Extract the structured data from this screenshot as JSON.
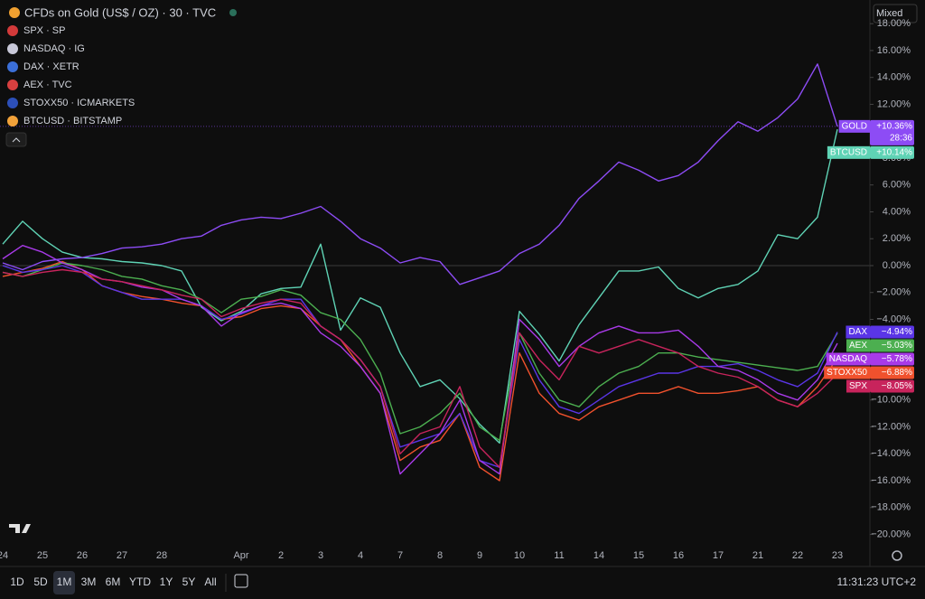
{
  "scale_mode": "Mixed",
  "toolbar": {
    "ranges": [
      "1D",
      "5D",
      "1M",
      "3M",
      "6M",
      "YTD",
      "1Y",
      "5Y",
      "All"
    ],
    "active_range": "1M",
    "clock": "11:31:23 UTC+2"
  },
  "chart_data": {
    "type": "line",
    "title": "CFDs on Gold (US$ / OZ) · 30 · TVC",
    "countdown": "28:36",
    "categories": [
      "24",
      null,
      "25",
      null,
      "26",
      null,
      "27",
      null,
      "28",
      null,
      null,
      null,
      "Apr",
      null,
      "2",
      null,
      "3",
      null,
      "4",
      null,
      "7",
      null,
      "8",
      null,
      "9",
      null,
      "10",
      null,
      "11",
      null,
      "14",
      null,
      "15",
      null,
      "16",
      null,
      "17",
      null,
      "21",
      null,
      "22",
      null,
      "23"
    ],
    "ylim": [
      -20.77,
      19.76
    ],
    "yticks": [
      {
        "value": -20,
        "label": "−20.00%"
      },
      {
        "value": -18,
        "label": "−18.00%"
      },
      {
        "value": -16,
        "label": "−16.00%"
      },
      {
        "value": -14,
        "label": "−14.00%"
      },
      {
        "value": -12,
        "label": "−12.00%"
      },
      {
        "value": -10,
        "label": "−10.00%"
      },
      {
        "value": -8,
        "label": "−8.00%"
      },
      {
        "value": -6,
        "label": "−6.00%"
      },
      {
        "value": -4,
        "label": "−4.00%"
      },
      {
        "value": -2,
        "label": "−2.00%"
      },
      {
        "value": 0,
        "label": "0.00%"
      },
      {
        "value": 2,
        "label": "2.00%"
      },
      {
        "value": 4,
        "label": "4.00%"
      },
      {
        "value": 6,
        "label": "6.00%"
      },
      {
        "value": 8,
        "label": "8.00%"
      },
      {
        "value": 10,
        "label": "10.00%"
      },
      {
        "value": 12,
        "label": "12.00%"
      },
      {
        "value": 14,
        "label": "14.00%"
      },
      {
        "value": 16,
        "label": "16.00%"
      },
      {
        "value": 18,
        "label": "18.00%"
      }
    ],
    "grid": false,
    "series": [
      {
        "name": "GOLD",
        "color": "#8d4cf5",
        "values": [
          0.2,
          -0.3,
          0.3,
          0.5,
          0.6,
          0.9,
          1.3,
          1.4,
          1.6,
          2.0,
          2.2,
          3.0,
          3.4,
          3.6,
          3.5,
          3.9,
          4.4,
          3.3,
          2.0,
          1.3,
          0.2,
          0.6,
          0.3,
          -1.4,
          -0.9,
          -0.4,
          0.9,
          1.6,
          3.0,
          5.0,
          6.3,
          7.7,
          7.1,
          6.3,
          6.7,
          7.7,
          9.3,
          10.7,
          10.0,
          11.0,
          12.4,
          15.0,
          10.36
        ],
        "value_labels": [
          null,
          null,
          null,
          null,
          null,
          null,
          null,
          null,
          null,
          null,
          null,
          null,
          null,
          null,
          null,
          null,
          null,
          null,
          null,
          null,
          null,
          null,
          null,
          null,
          null,
          null,
          null,
          null,
          null,
          null,
          null,
          null,
          null,
          null,
          null,
          null,
          null,
          null,
          null,
          null,
          null,
          null,
          "+10.36%"
        ]
      },
      {
        "name": "SPX",
        "legend_label": "SPX · SP",
        "color": "#c8245c",
        "values": [
          -0.5,
          -0.8,
          -0.5,
          -0.3,
          -0.5,
          -1.0,
          -1.2,
          -1.5,
          -1.8,
          -2.2,
          -2.5,
          -3.8,
          -3.2,
          -2.8,
          -2.5,
          -2.8,
          -4.5,
          -5.5,
          -7.0,
          -9.0,
          -14.0,
          -12.5,
          -12.0,
          -9.0,
          -13.5,
          -15.0,
          -5.0,
          -7.0,
          -8.5,
          -6.0,
          -6.5,
          -6.0,
          -5.5,
          -6.0,
          -6.5,
          -7.5,
          -8.0,
          -8.3,
          -9.0,
          -10.0,
          -10.5,
          -9.5,
          -8.05
        ],
        "value_labels": [
          null,
          null,
          null,
          null,
          null,
          null,
          null,
          null,
          null,
          null,
          null,
          null,
          null,
          null,
          null,
          null,
          null,
          null,
          null,
          null,
          null,
          null,
          null,
          null,
          null,
          null,
          null,
          null,
          null,
          null,
          null,
          null,
          null,
          null,
          null,
          null,
          null,
          null,
          null,
          null,
          null,
          null,
          "−8.05%"
        ]
      },
      {
        "name": "NASDAQ",
        "legend_label": "NASDAQ · IG",
        "color": "#a83ae8",
        "values": [
          0.5,
          1.5,
          1.0,
          0.2,
          -0.3,
          -1.0,
          -1.2,
          -1.6,
          -1.8,
          -2.5,
          -3.0,
          -4.5,
          -3.5,
          -3.0,
          -2.8,
          -3.2,
          -5.0,
          -6.0,
          -7.5,
          -9.5,
          -15.5,
          -14.0,
          -12.5,
          -10.0,
          -14.5,
          -15.5,
          -4.0,
          -5.5,
          -7.5,
          -6.0,
          -5.0,
          -4.5,
          -5.0,
          -5.0,
          -4.8,
          -6.0,
          -7.5,
          -7.8,
          -8.5,
          -9.5,
          -10.0,
          -8.5,
          -5.78
        ],
        "value_labels": [
          null,
          null,
          null,
          null,
          null,
          null,
          null,
          null,
          null,
          null,
          null,
          null,
          null,
          null,
          null,
          null,
          null,
          null,
          null,
          null,
          null,
          null,
          null,
          null,
          null,
          null,
          null,
          null,
          null,
          null,
          null,
          null,
          null,
          null,
          null,
          null,
          null,
          null,
          null,
          null,
          null,
          null,
          "−5.78%"
        ]
      },
      {
        "name": "DAX",
        "legend_label": "DAX · XETR",
        "color": "#5a35e6",
        "values": [
          0,
          -0.5,
          -0.3,
          0,
          -0.5,
          -1.5,
          -2.0,
          -2.5,
          -2.5,
          -2.5,
          -3.0,
          -4.0,
          -3.6,
          -3.0,
          -2.5,
          -2.5,
          -4.5,
          -5.5,
          -7.0,
          -9.0,
          -13.5,
          -13.0,
          -12.5,
          -11.0,
          -14.5,
          -15.0,
          -5.5,
          -8.5,
          -10.5,
          -11.0,
          -10.0,
          -9.0,
          -8.5,
          -8.0,
          -8.0,
          -7.5,
          -7.5,
          -7.3,
          -7.8,
          -8.5,
          -9.0,
          -8.0,
          -4.94
        ],
        "value_labels": [
          null,
          null,
          null,
          null,
          null,
          null,
          null,
          null,
          null,
          null,
          null,
          null,
          null,
          null,
          null,
          null,
          null,
          null,
          null,
          null,
          null,
          null,
          null,
          null,
          null,
          null,
          null,
          null,
          null,
          null,
          null,
          null,
          null,
          null,
          null,
          null,
          null,
          null,
          null,
          null,
          null,
          null,
          "−4.94%"
        ]
      },
      {
        "name": "AEX",
        "legend_label": "AEX · TVC",
        "color": "#4caf50",
        "values": [
          -0.5,
          -0.8,
          -0.3,
          0.2,
          0,
          -0.3,
          -0.8,
          -1.0,
          -1.5,
          -1.8,
          -2.5,
          -3.5,
          -2.5,
          -2.3,
          -1.8,
          -2.2,
          -3.5,
          -4.0,
          -5.5,
          -8.0,
          -12.5,
          -12.0,
          -11.0,
          -9.5,
          -12.0,
          -13.0,
          -5.0,
          -8.0,
          -10.0,
          -10.5,
          -9.0,
          -8.0,
          -7.5,
          -6.5,
          -6.5,
          -6.8,
          -7.0,
          -7.2,
          -7.4,
          -7.6,
          -7.8,
          -7.5,
          -5.03
        ],
        "value_labels": [
          null,
          null,
          null,
          null,
          null,
          null,
          null,
          null,
          null,
          null,
          null,
          null,
          null,
          null,
          null,
          null,
          null,
          null,
          null,
          null,
          null,
          null,
          null,
          null,
          null,
          null,
          null,
          null,
          null,
          null,
          null,
          null,
          null,
          null,
          null,
          null,
          null,
          null,
          null,
          null,
          null,
          null,
          "−5.03%"
        ]
      },
      {
        "name": "STOXX50",
        "legend_label": "STOXX50 · ICMARKETS",
        "color": "#f0512d",
        "values": [
          -0.8,
          -0.5,
          -0.2,
          0.3,
          -0.3,
          -1.5,
          -2.0,
          -2.3,
          -2.5,
          -2.8,
          -3.0,
          -4.0,
          -3.8,
          -3.2,
          -3.0,
          -3.2,
          -4.5,
          -5.5,
          -7.5,
          -9.5,
          -14.5,
          -13.5,
          -13.0,
          -11.0,
          -15.0,
          -16.0,
          -6.5,
          -9.5,
          -11.0,
          -11.5,
          -10.5,
          -10.0,
          -9.5,
          -9.5,
          -9.0,
          -9.5,
          -9.5,
          -9.3,
          -9.0,
          -10.0,
          -10.5,
          -9.0,
          -6.88
        ],
        "value_labels": [
          null,
          null,
          null,
          null,
          null,
          null,
          null,
          null,
          null,
          null,
          null,
          null,
          null,
          null,
          null,
          null,
          null,
          null,
          null,
          null,
          null,
          null,
          null,
          null,
          null,
          null,
          null,
          null,
          null,
          null,
          null,
          null,
          null,
          null,
          null,
          null,
          null,
          null,
          null,
          null,
          null,
          null,
          "−6.88%"
        ]
      },
      {
        "name": "BTCUSD",
        "legend_label": "BTCUSD · BITSTAMP",
        "color": "#5fd3b5",
        "values": [
          1.6,
          3.3,
          2.0,
          1.0,
          0.6,
          0.5,
          0.3,
          0.2,
          0,
          -0.4,
          -3.1,
          -4.1,
          -3.4,
          -2.1,
          -1.7,
          -1.6,
          1.6,
          -4.8,
          -2.4,
          -3.1,
          -6.5,
          -9.0,
          -8.5,
          -9.9,
          -11.8,
          -13.2,
          -3.4,
          -5.1,
          -7.1,
          -4.4,
          -2.4,
          -0.4,
          -0.4,
          -0.1,
          -1.7,
          -2.4,
          -1.7,
          -1.4,
          -0.4,
          2.3,
          2.0,
          3.6,
          10.14
        ],
        "value_labels": [
          null,
          null,
          null,
          null,
          null,
          null,
          null,
          null,
          null,
          null,
          null,
          null,
          null,
          null,
          null,
          null,
          null,
          null,
          null,
          null,
          null,
          null,
          null,
          null,
          null,
          null,
          null,
          null,
          null,
          null,
          null,
          null,
          null,
          null,
          null,
          null,
          null,
          null,
          null,
          null,
          null,
          null,
          "+10.14%"
        ]
      }
    ]
  }
}
